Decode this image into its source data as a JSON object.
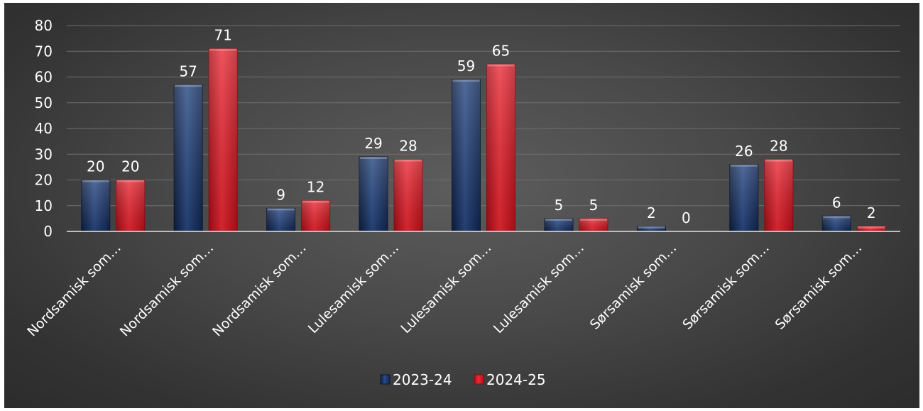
{
  "chart_data": {
    "type": "bar",
    "categories": [
      "Nordsamisk som…",
      "Nordsamisk som…",
      "Nordsamisk som…",
      "Lulesamisk som…",
      "Lulesamisk som…",
      "Lulesamisk som…",
      "Sørsamisk som…",
      "Sørsamisk som…",
      "Sørsamisk som…"
    ],
    "series": [
      {
        "name": "2023-24",
        "values": [
          20,
          57,
          9,
          29,
          59,
          5,
          2,
          26,
          6
        ],
        "color": "#1f3a6e"
      },
      {
        "name": "2024-25",
        "values": [
          20,
          71,
          12,
          28,
          65,
          5,
          0,
          28,
          2
        ],
        "color": "#d81420"
      }
    ],
    "yticks": [
      "0",
      "10",
      "20",
      "30",
      "40",
      "50",
      "60",
      "70",
      "80"
    ],
    "ylim": [
      0,
      80
    ],
    "grid": true,
    "legend_position": "bottom",
    "data_labels": true,
    "title": "",
    "xlabel": "",
    "ylabel": ""
  }
}
